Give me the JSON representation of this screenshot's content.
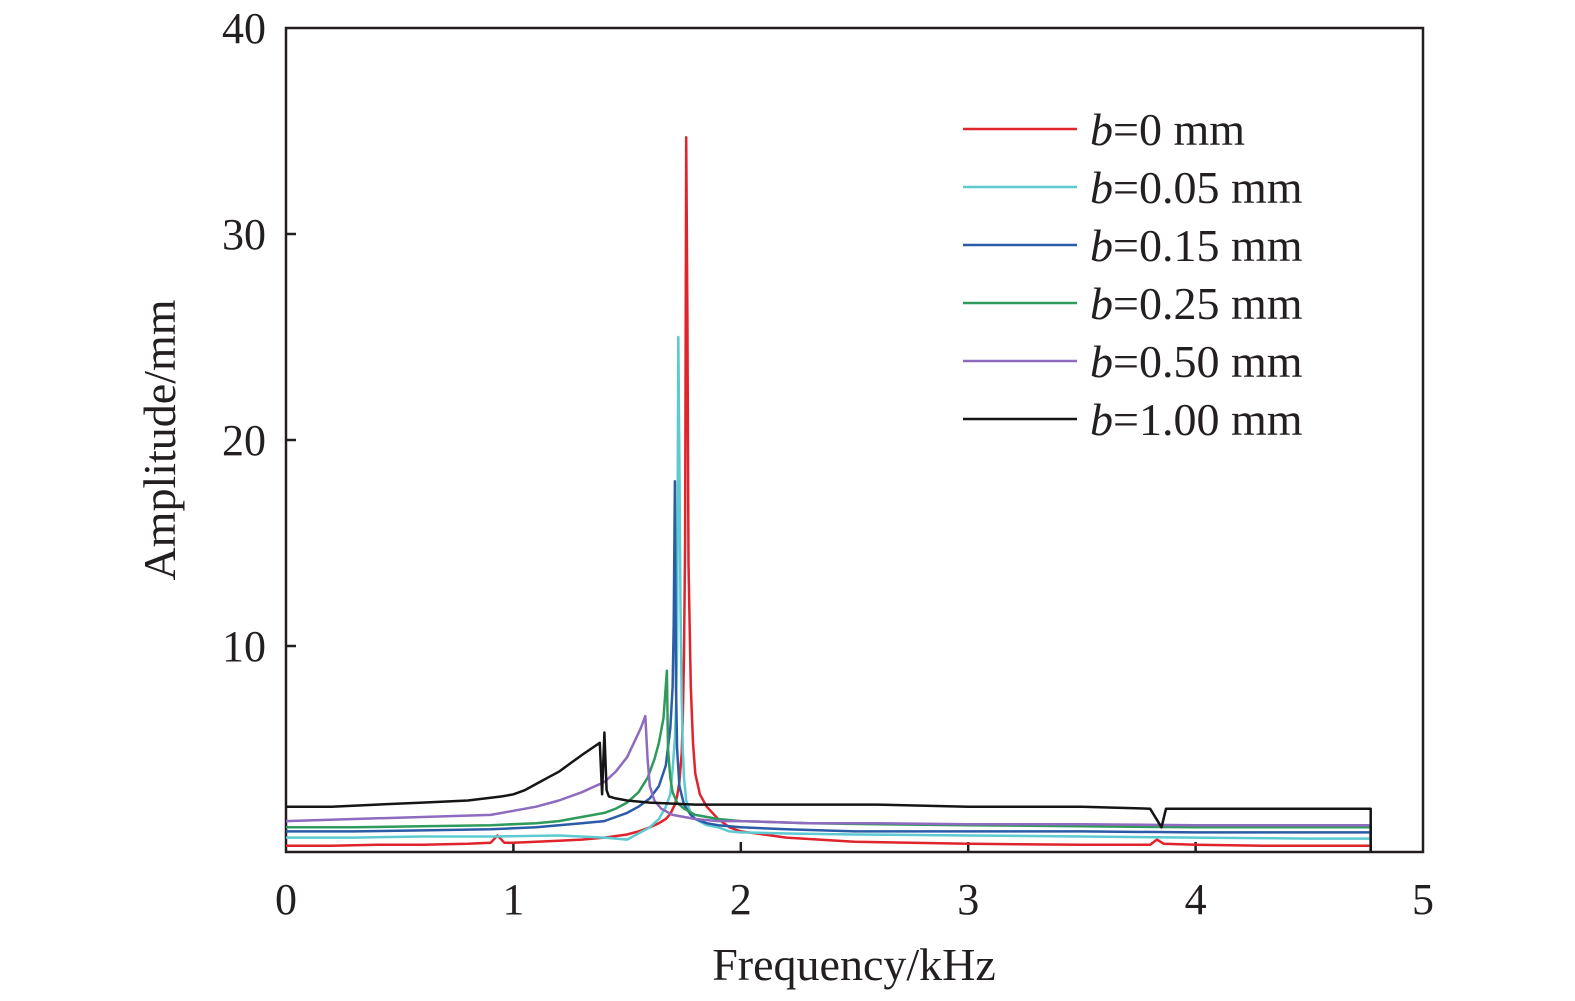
{
  "chart_data": {
    "type": "line",
    "title": "",
    "xlabel": "Frequency/kHz",
    "ylabel": "Amplitude/mm",
    "xlim": [
      0,
      5
    ],
    "ylim": [
      0,
      40
    ],
    "xticks": [
      "0",
      "1",
      "2",
      "3",
      "4",
      "5"
    ],
    "yticks": [
      "10",
      "20",
      "30",
      "40"
    ],
    "grid": false,
    "legend_position": "top-right",
    "series": [
      {
        "name": "b=0 mm",
        "legend": {
          "var": "b",
          "rest": "=0 mm"
        },
        "color": "#e0242b",
        "x": [
          0.0,
          0.2,
          0.4,
          0.6,
          0.8,
          0.9,
          0.93,
          0.96,
          1.0,
          1.1,
          1.2,
          1.3,
          1.4,
          1.5,
          1.55,
          1.6,
          1.64,
          1.67,
          1.69,
          1.71,
          1.72,
          1.73,
          1.74,
          1.745,
          1.75,
          1.755,
          1.76,
          1.765,
          1.77,
          1.78,
          1.79,
          1.8,
          1.82,
          1.85,
          1.9,
          1.95,
          2.0,
          2.2,
          2.5,
          3.0,
          3.5,
          3.8,
          3.83,
          3.86,
          4.0,
          4.3,
          4.6,
          4.77,
          4.77
        ],
        "y": [
          0.3,
          0.3,
          0.35,
          0.35,
          0.4,
          0.45,
          0.8,
          0.45,
          0.45,
          0.5,
          0.55,
          0.6,
          0.7,
          0.85,
          1.0,
          1.2,
          1.4,
          1.6,
          1.85,
          2.3,
          2.7,
          3.4,
          4.8,
          6.5,
          9.5,
          15.0,
          34.7,
          26.0,
          14.0,
          8.0,
          5.3,
          3.8,
          2.8,
          2.2,
          1.6,
          1.2,
          1.0,
          0.7,
          0.5,
          0.4,
          0.35,
          0.35,
          0.6,
          0.4,
          0.35,
          0.3,
          0.3,
          0.3,
          0.0
        ]
      },
      {
        "name": "b=0.05 mm",
        "legend": {
          "var": "b",
          "rest": "=0.05 mm"
        },
        "color": "#5ccad0",
        "x": [
          0.0,
          0.3,
          0.6,
          0.9,
          1.2,
          1.4,
          1.5,
          1.55,
          1.6,
          1.64,
          1.67,
          1.69,
          1.7,
          1.71,
          1.715,
          1.72,
          1.725,
          1.73,
          1.735,
          1.74,
          1.745,
          1.75,
          1.76,
          1.78,
          1.8,
          1.85,
          1.9,
          1.95,
          2.0,
          2.2,
          2.5,
          3.0,
          3.5,
          4.0,
          4.5,
          4.77,
          4.77
        ],
        "y": [
          0.7,
          0.7,
          0.75,
          0.75,
          0.8,
          0.7,
          0.6,
          0.9,
          1.2,
          1.6,
          2.2,
          2.8,
          4.0,
          5.5,
          7.0,
          10.0,
          25.0,
          19.0,
          12.0,
          7.5,
          5.0,
          3.6,
          2.5,
          1.9,
          1.6,
          1.3,
          1.2,
          1.0,
          0.95,
          0.9,
          0.85,
          0.8,
          0.75,
          0.7,
          0.65,
          0.65,
          0.0
        ]
      },
      {
        "name": "b=0.15 mm",
        "legend": {
          "var": "b",
          "rest": "=0.15 mm"
        },
        "color": "#2c5ca8",
        "x": [
          0.0,
          0.3,
          0.6,
          0.9,
          1.1,
          1.2,
          1.3,
          1.4,
          1.45,
          1.5,
          1.55,
          1.6,
          1.64,
          1.67,
          1.69,
          1.7,
          1.705,
          1.71,
          1.715,
          1.72,
          1.73,
          1.75,
          1.78,
          1.8,
          1.85,
          1.9,
          2.0,
          2.2,
          2.5,
          3.0,
          3.5,
          4.0,
          4.5,
          4.77,
          4.77
        ],
        "y": [
          1.0,
          1.0,
          1.05,
          1.1,
          1.2,
          1.3,
          1.4,
          1.5,
          1.7,
          1.9,
          2.2,
          2.6,
          3.2,
          4.2,
          6.0,
          8.0,
          11.0,
          18.0,
          8.0,
          5.0,
          3.2,
          2.3,
          1.8,
          1.6,
          1.4,
          1.3,
          1.2,
          1.1,
          1.0,
          1.0,
          1.0,
          0.95,
          0.95,
          0.95,
          0.0
        ]
      },
      {
        "name": "b=0.25 mm",
        "legend": {
          "var": "b",
          "rest": "=0.25 mm"
        },
        "color": "#2e9a5c",
        "x": [
          0.0,
          0.3,
          0.6,
          0.9,
          1.1,
          1.2,
          1.3,
          1.4,
          1.45,
          1.5,
          1.55,
          1.59,
          1.62,
          1.64,
          1.66,
          1.675,
          1.68,
          1.69,
          1.7,
          1.72,
          1.75,
          1.8,
          1.9,
          2.0,
          2.3,
          2.6,
          3.0,
          3.5,
          4.0,
          4.5,
          4.77,
          4.77
        ],
        "y": [
          1.2,
          1.2,
          1.25,
          1.3,
          1.4,
          1.5,
          1.7,
          1.9,
          2.1,
          2.4,
          2.9,
          3.6,
          4.5,
          5.3,
          6.5,
          8.8,
          5.0,
          3.6,
          2.9,
          2.4,
          2.1,
          1.8,
          1.6,
          1.5,
          1.4,
          1.35,
          1.3,
          1.25,
          1.2,
          1.2,
          1.2,
          0.0
        ]
      },
      {
        "name": "b=0.50 mm",
        "legend": {
          "var": "b",
          "rest": "=0.50 mm"
        },
        "color": "#8e6bbf",
        "x": [
          0.0,
          0.3,
          0.6,
          0.9,
          1.0,
          1.1,
          1.2,
          1.3,
          1.4,
          1.45,
          1.5,
          1.53,
          1.56,
          1.58,
          1.59,
          1.6,
          1.62,
          1.65,
          1.7,
          1.8,
          1.9,
          2.0,
          2.3,
          2.6,
          3.0,
          3.5,
          4.0,
          4.5,
          4.77,
          4.77
        ],
        "y": [
          1.5,
          1.6,
          1.7,
          1.8,
          2.0,
          2.2,
          2.5,
          2.9,
          3.4,
          3.9,
          4.6,
          5.3,
          6.0,
          6.6,
          4.5,
          3.2,
          2.5,
          2.1,
          1.8,
          1.6,
          1.5,
          1.5,
          1.4,
          1.4,
          1.35,
          1.35,
          1.3,
          1.3,
          1.3,
          0.0
        ]
      },
      {
        "name": "b=1.00 mm",
        "legend": {
          "var": "b",
          "rest": "=1.00 mm"
        },
        "color": "#151515",
        "x": [
          0.0,
          0.2,
          0.4,
          0.6,
          0.8,
          0.95,
          1.0,
          1.05,
          1.1,
          1.15,
          1.2,
          1.25,
          1.3,
          1.34,
          1.38,
          1.39,
          1.4,
          1.41,
          1.42,
          1.45,
          1.5,
          1.6,
          1.8,
          2.0,
          2.3,
          2.6,
          3.0,
          3.3,
          3.5,
          3.8,
          3.85,
          3.87,
          3.9,
          4.0,
          4.3,
          4.6,
          4.77,
          4.77
        ],
        "y": [
          2.2,
          2.2,
          2.3,
          2.4,
          2.5,
          2.7,
          2.8,
          3.0,
          3.3,
          3.6,
          3.9,
          4.3,
          4.7,
          5.0,
          5.3,
          2.8,
          5.8,
          3.0,
          2.7,
          2.6,
          2.5,
          2.4,
          2.3,
          2.3,
          2.3,
          2.3,
          2.2,
          2.2,
          2.2,
          2.1,
          1.2,
          2.1,
          2.1,
          2.1,
          2.1,
          2.1,
          2.1,
          0.0
        ]
      }
    ]
  }
}
